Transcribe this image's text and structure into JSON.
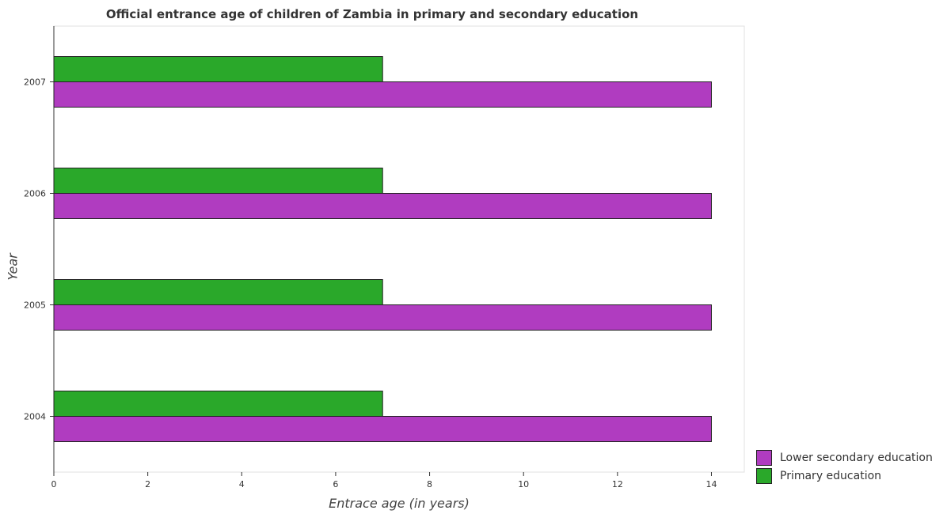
{
  "chart_data": {
    "type": "bar",
    "orientation": "horizontal",
    "title": "Official entrance age of children of Zambia in primary and secondary education",
    "xlabel": "Entrace age (in  years)",
    "ylabel": "Year",
    "xlim": [
      0,
      14.7
    ],
    "x_ticks": [
      0,
      2,
      4,
      6,
      8,
      10,
      12,
      14
    ],
    "categories": [
      "2004",
      "2005",
      "2006",
      "2007"
    ],
    "series": [
      {
        "name": "Lower secondary education",
        "color": "#b03cc0",
        "values": [
          14,
          14,
          14,
          14
        ]
      },
      {
        "name": "Primary education",
        "color": "#2aa82a",
        "values": [
          7,
          7,
          7,
          7
        ]
      }
    ],
    "legend_position": "bottom-right",
    "grid": false
  }
}
